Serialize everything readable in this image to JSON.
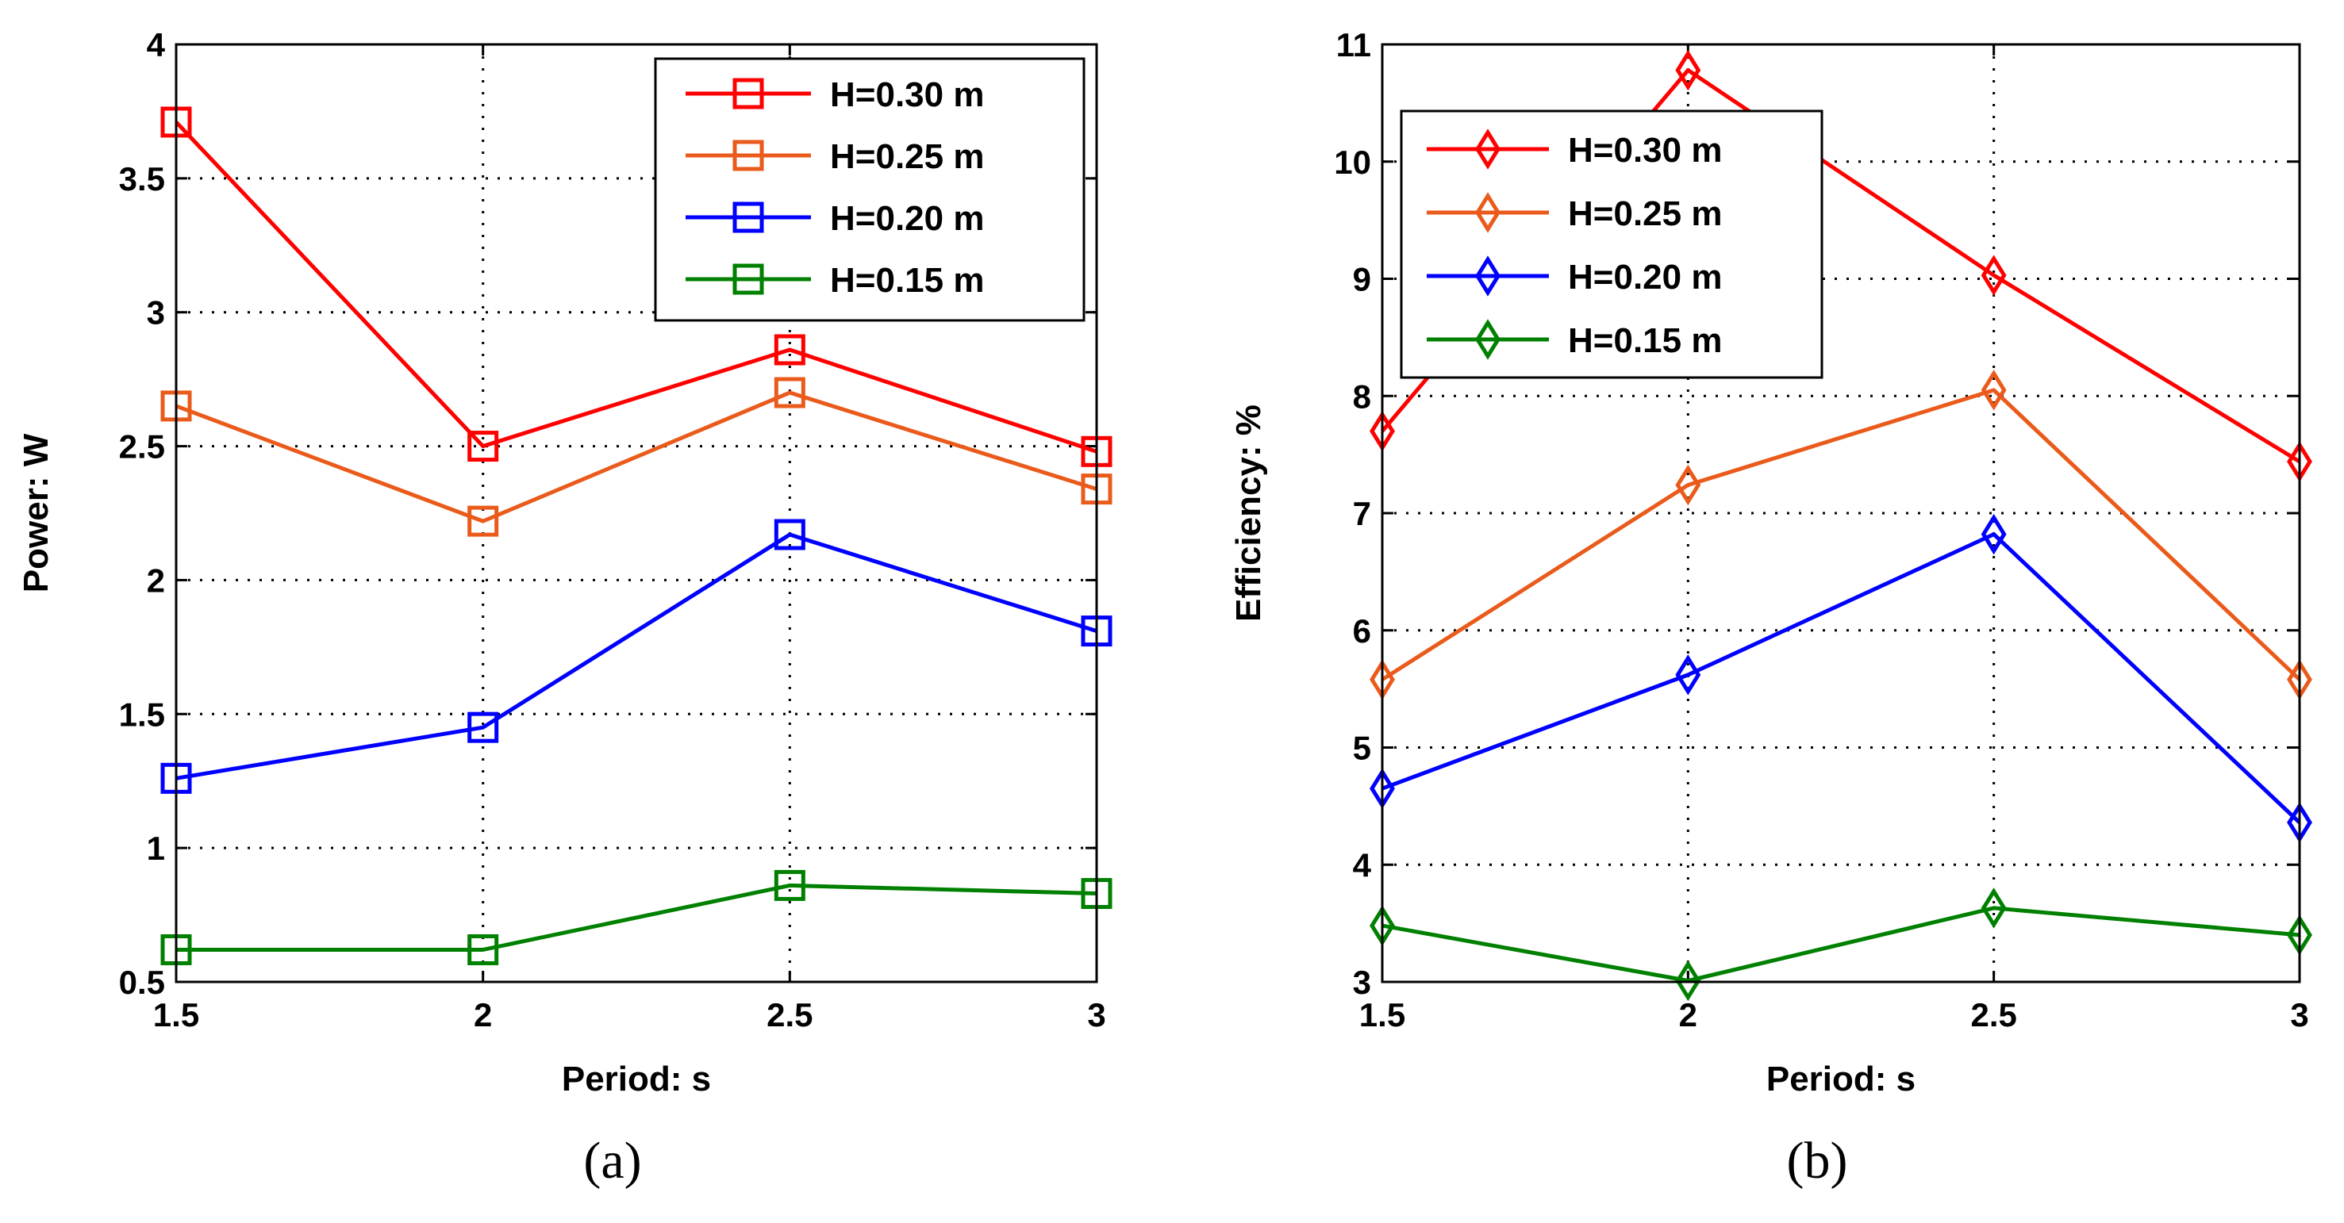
{
  "chart_data": [
    {
      "type": "line",
      "caption": "(a)",
      "xlabel": "Period: s",
      "ylabel": "Power: W",
      "xlim": [
        1.5,
        3
      ],
      "ylim": [
        0.5,
        4
      ],
      "xticks": [
        1.5,
        2,
        2.5,
        3
      ],
      "xtick_labels": [
        "1.5",
        "2",
        "2.5",
        "3"
      ],
      "yticks": [
        0.5,
        1,
        1.5,
        2,
        2.5,
        3,
        3.5,
        4
      ],
      "ytick_labels": [
        "0.5",
        "1",
        "1.5",
        "2",
        "2.5",
        "3",
        "3.5",
        "4"
      ],
      "grid": true,
      "legend_position": "top-right",
      "marker": "square",
      "x": [
        1.5,
        2,
        2.5,
        3
      ],
      "series": [
        {
          "name": "H=0.30 m",
          "color": "#ff0000",
          "values": [
            3.71,
            2.5,
            2.86,
            2.48
          ]
        },
        {
          "name": "H=0.25 m",
          "color": "#ea5b1b",
          "values": [
            2.65,
            2.22,
            2.7,
            2.34
          ]
        },
        {
          "name": "H=0.20 m",
          "color": "#0000ff",
          "values": [
            1.26,
            1.45,
            2.17,
            1.81
          ]
        },
        {
          "name": "H=0.15 m",
          "color": "#008000",
          "values": [
            0.62,
            0.62,
            0.86,
            0.83
          ]
        }
      ]
    },
    {
      "type": "line",
      "caption": "(b)",
      "xlabel": "Period: s",
      "ylabel": "Efficiency: %",
      "xlim": [
        1.5,
        3
      ],
      "ylim": [
        3,
        11
      ],
      "xticks": [
        1.5,
        2,
        2.5,
        3
      ],
      "xtick_labels": [
        "1.5",
        "2",
        "2.5",
        "3"
      ],
      "yticks": [
        3,
        4,
        5,
        6,
        7,
        8,
        9,
        10,
        11
      ],
      "ytick_labels": [
        "3",
        "4",
        "5",
        "6",
        "7",
        "8",
        "9",
        "10",
        "11"
      ],
      "grid": true,
      "legend_position": "top-left",
      "marker": "diamond",
      "x": [
        1.5,
        2,
        2.5,
        3
      ],
      "series": [
        {
          "name": "H=0.30 m",
          "color": "#ff0000",
          "values": [
            7.7,
            10.78,
            9.03,
            7.44
          ]
        },
        {
          "name": "H=0.25 m",
          "color": "#ea5b1b",
          "values": [
            5.58,
            7.24,
            8.05,
            5.58
          ]
        },
        {
          "name": "H=0.20 m",
          "color": "#0000ff",
          "values": [
            4.65,
            5.62,
            6.82,
            4.36
          ]
        },
        {
          "name": "H=0.15 m",
          "color": "#008000",
          "values": [
            3.48,
            3.01,
            3.63,
            3.4
          ]
        }
      ]
    }
  ]
}
